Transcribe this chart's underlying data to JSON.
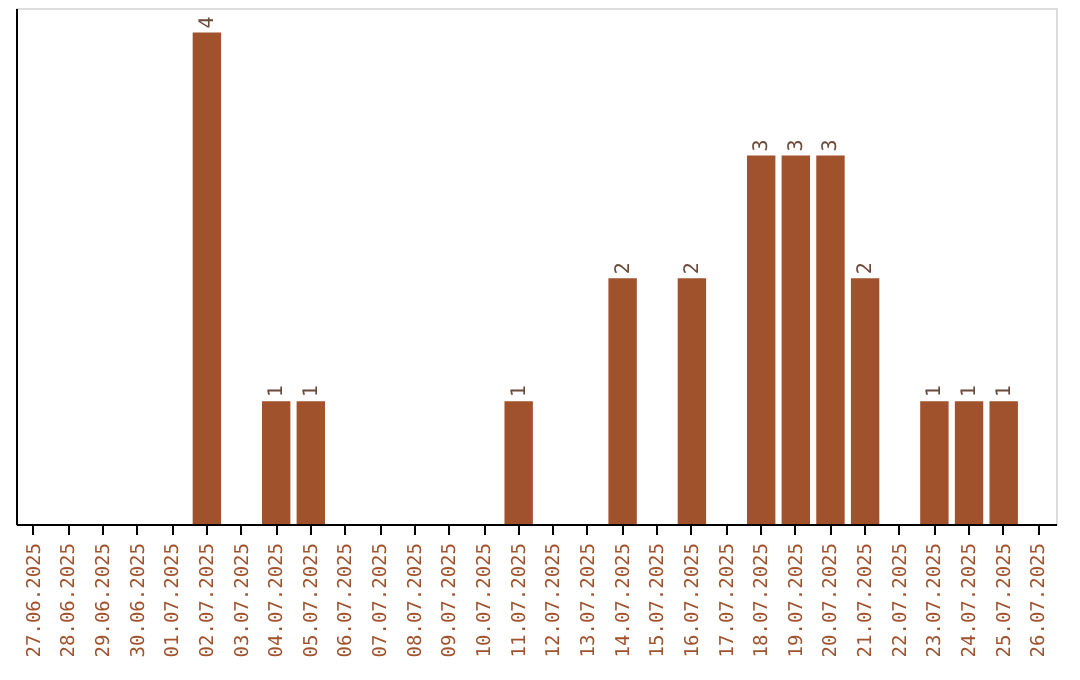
{
  "chart_data": {
    "type": "bar",
    "categories": [
      "27.06.2025",
      "28.06.2025",
      "29.06.2025",
      "30.06.2025",
      "01.07.2025",
      "02.07.2025",
      "03.07.2025",
      "04.07.2025",
      "05.07.2025",
      "06.07.2025",
      "07.07.2025",
      "08.07.2025",
      "09.07.2025",
      "10.07.2025",
      "11.07.2025",
      "12.07.2025",
      "13.07.2025",
      "14.07.2025",
      "15.07.2025",
      "16.07.2025",
      "17.07.2025",
      "18.07.2025",
      "19.07.2025",
      "20.07.2025",
      "21.07.2025",
      "22.07.2025",
      "23.07.2025",
      "24.07.2025",
      "25.07.2025",
      "26.07.2025"
    ],
    "values": [
      0,
      0,
      0,
      0,
      0,
      4,
      0,
      1,
      1,
      0,
      0,
      0,
      0,
      0,
      1,
      0,
      0,
      2,
      0,
      2,
      0,
      3,
      3,
      3,
      2,
      0,
      1,
      1,
      1,
      0
    ],
    "value_labels": [
      null,
      null,
      null,
      null,
      null,
      "4",
      null,
      "1",
      "1",
      null,
      null,
      null,
      null,
      null,
      "1",
      null,
      null,
      "2",
      null,
      "2",
      null,
      "3",
      "3",
      "3",
      "2",
      null,
      "1",
      "1",
      "1",
      null
    ],
    "color": "#a0522d",
    "ylim": [
      0,
      4.2
    ],
    "tick_labels": "x",
    "grid": false
  }
}
